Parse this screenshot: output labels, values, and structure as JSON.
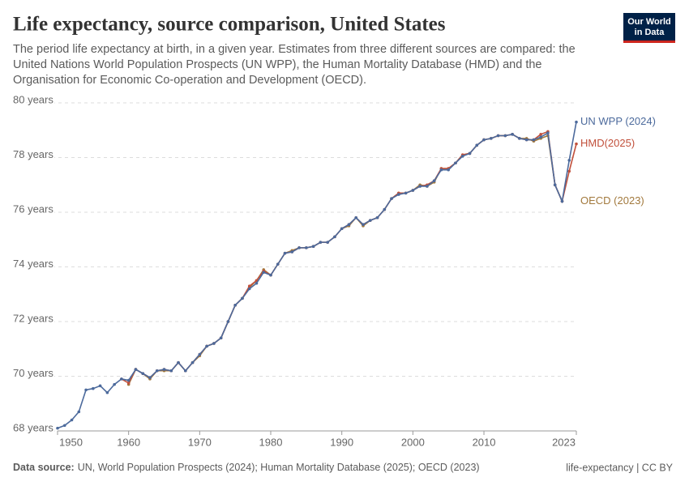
{
  "chart_data": {
    "type": "line",
    "title": "Life expectancy, source comparison, United States",
    "subtitle": [
      "The period life expectancy at birth, in a given year. Estimates from three different sources are compared: the",
      "United Nations World Population Prospects (UN WPP), the Human Mortality Database (HMD) and the",
      "Organisation for Economic Co-operation and Development (OECD)."
    ],
    "source_label": "Data source:",
    "source": "UN, World Population Prospects (2024); Human Mortality Database (2025); OECD (2023)",
    "credit": "life-expectancy | CC BY",
    "logo": [
      "Our World",
      "in Data"
    ],
    "x": [
      1950,
      1951,
      1952,
      1953,
      1954,
      1955,
      1956,
      1957,
      1958,
      1959,
      1960,
      1961,
      1962,
      1963,
      1964,
      1965,
      1966,
      1967,
      1968,
      1969,
      1970,
      1971,
      1972,
      1973,
      1974,
      1975,
      1976,
      1977,
      1978,
      1979,
      1980,
      1981,
      1982,
      1983,
      1984,
      1985,
      1986,
      1987,
      1988,
      1989,
      1990,
      1991,
      1992,
      1993,
      1994,
      1995,
      1996,
      1997,
      1998,
      1999,
      2000,
      2001,
      2002,
      2003,
      2004,
      2005,
      2006,
      2007,
      2008,
      2009,
      2010,
      2011,
      2012,
      2013,
      2014,
      2015,
      2016,
      2017,
      2018,
      2019,
      2020,
      2021,
      2022,
      2023
    ],
    "series": [
      {
        "name": "OECD (2023)",
        "color": "#a2793d",
        "values": [
          null,
          null,
          null,
          null,
          null,
          null,
          null,
          null,
          null,
          null,
          69.7,
          70.25,
          70.1,
          69.9,
          70.2,
          70.2,
          70.2,
          70.5,
          70.2,
          70.5,
          70.75,
          71.1,
          71.2,
          71.4,
          72.0,
          72.6,
          72.85,
          73.25,
          73.5,
          73.9,
          73.7,
          74.1,
          74.5,
          74.6,
          74.7,
          74.7,
          74.75,
          74.9,
          74.9,
          75.1,
          75.4,
          75.5,
          75.8,
          75.5,
          75.7,
          75.8,
          76.1,
          76.5,
          76.7,
          76.7,
          76.8,
          77.0,
          76.95,
          77.1,
          77.6,
          77.6,
          77.8,
          78.1,
          78.15,
          78.45,
          78.65,
          78.7,
          78.8,
          78.8,
          78.85,
          78.7,
          78.7,
          78.6,
          78.7,
          78.8,
          77.0,
          76.4,
          null,
          null
        ]
      },
      {
        "name": "HMD(2025)",
        "color": "#c1503b",
        "values": [
          null,
          null,
          null,
          null,
          null,
          null,
          null,
          null,
          null,
          69.9,
          69.75,
          70.25,
          70.1,
          69.95,
          70.2,
          70.25,
          70.2,
          70.5,
          70.2,
          70.5,
          70.8,
          71.1,
          71.2,
          71.4,
          72.0,
          72.6,
          72.85,
          73.3,
          73.5,
          73.85,
          73.7,
          74.1,
          74.5,
          74.55,
          74.7,
          74.7,
          74.75,
          74.9,
          74.9,
          75.1,
          75.4,
          75.55,
          75.8,
          75.55,
          75.7,
          75.8,
          76.1,
          76.5,
          76.7,
          76.7,
          76.8,
          76.95,
          77.0,
          77.15,
          77.6,
          77.6,
          77.8,
          78.1,
          78.15,
          78.45,
          78.65,
          78.7,
          78.8,
          78.8,
          78.85,
          78.7,
          78.65,
          78.65,
          78.85,
          78.95,
          77.0,
          76.4,
          77.5,
          78.5
        ]
      },
      {
        "name": "UN WPP (2024)",
        "color": "#4c6a9c",
        "values": [
          68.1,
          68.2,
          68.4,
          68.7,
          69.5,
          69.55,
          69.65,
          69.4,
          69.7,
          69.9,
          69.85,
          70.25,
          70.1,
          69.95,
          70.2,
          70.25,
          70.2,
          70.5,
          70.2,
          70.5,
          70.8,
          71.1,
          71.2,
          71.4,
          72.0,
          72.6,
          72.85,
          73.2,
          73.4,
          73.8,
          73.7,
          74.1,
          74.5,
          74.55,
          74.7,
          74.7,
          74.75,
          74.9,
          74.9,
          75.1,
          75.4,
          75.55,
          75.8,
          75.55,
          75.7,
          75.8,
          76.1,
          76.5,
          76.65,
          76.7,
          76.8,
          76.95,
          76.95,
          77.15,
          77.55,
          77.55,
          77.8,
          78.05,
          78.15,
          78.45,
          78.65,
          78.7,
          78.8,
          78.8,
          78.85,
          78.7,
          78.65,
          78.65,
          78.75,
          78.9,
          77.0,
          76.4,
          77.9,
          79.3
        ]
      }
    ],
    "xlim": [
      1950,
      2023
    ],
    "xticks": [
      1950,
      1960,
      1970,
      1980,
      1990,
      2000,
      2010,
      2023
    ],
    "ylim": [
      68,
      80
    ],
    "yticks": [
      {
        "value": 68,
        "label": "68 years"
      },
      {
        "value": 70,
        "label": "70 years"
      },
      {
        "value": 72,
        "label": "72 years"
      },
      {
        "value": 74,
        "label": "74 years"
      },
      {
        "value": 76,
        "label": "76 years"
      },
      {
        "value": 78,
        "label": "78 years"
      },
      {
        "value": 80,
        "label": "80 years"
      }
    ],
    "grid": true
  }
}
